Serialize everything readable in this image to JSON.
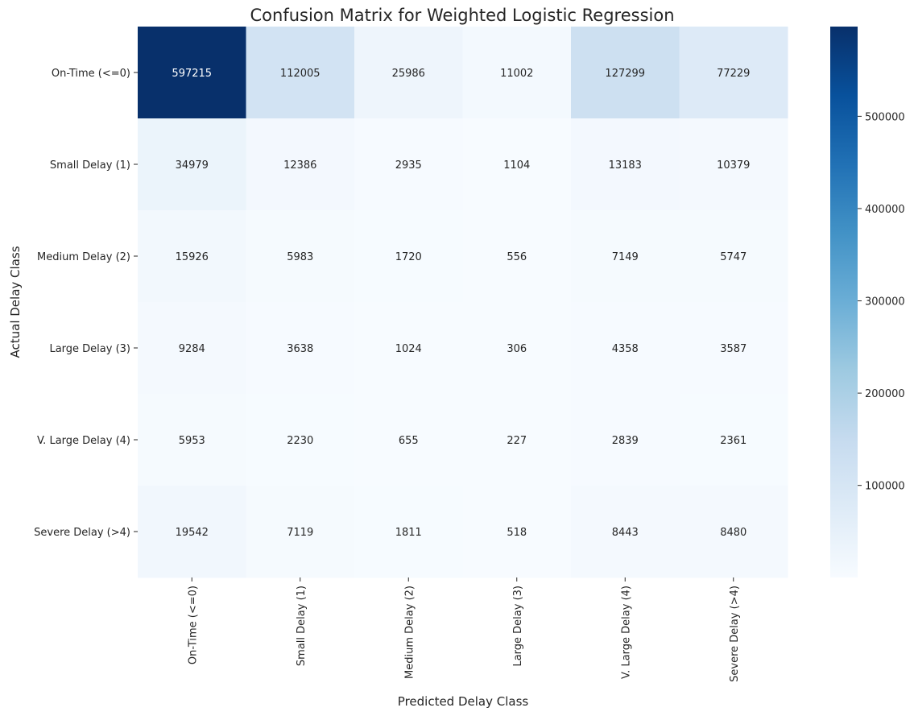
{
  "chart_data": {
    "type": "heatmap",
    "title": "Confusion Matrix for Weighted Logistic Regression",
    "xlabel": "Predicted Delay Class",
    "ylabel": "Actual Delay Class",
    "x_categories": [
      "On-Time (<=0)",
      "Small Delay (1)",
      "Medium Delay (2)",
      "Large Delay (3)",
      "V. Large Delay (4)",
      "Severe Delay (>4)"
    ],
    "y_categories": [
      "On-Time (<=0)",
      "Small Delay (1)",
      "Medium Delay (2)",
      "Large Delay (3)",
      "V. Large Delay (4)",
      "Severe Delay (>4)"
    ],
    "values": [
      [
        597215,
        112005,
        25986,
        11002,
        127299,
        77229
      ],
      [
        34979,
        12386,
        2935,
        1104,
        13183,
        10379
      ],
      [
        15926,
        5983,
        1720,
        556,
        7149,
        5747
      ],
      [
        9284,
        3638,
        1024,
        306,
        4358,
        3587
      ],
      [
        5953,
        2230,
        655,
        227,
        2839,
        2361
      ],
      [
        19542,
        7119,
        1811,
        518,
        8443,
        8480
      ]
    ],
    "colormap": "Blues",
    "colorbar": {
      "ticks": [
        100000,
        200000,
        300000,
        400000,
        500000
      ],
      "tick_labels": [
        "100000",
        "200000",
        "300000",
        "400000",
        "500000"
      ],
      "range": [
        227,
        597215
      ]
    }
  }
}
